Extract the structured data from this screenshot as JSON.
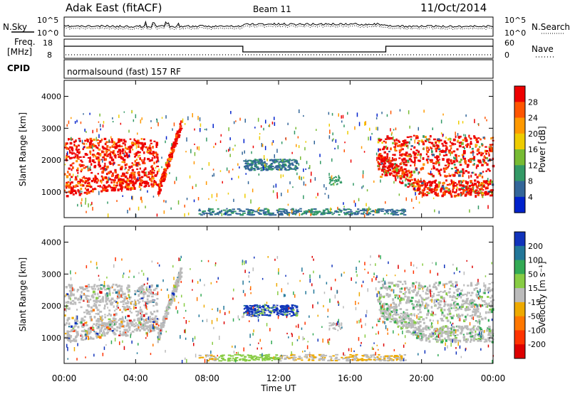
{
  "header": {
    "title": "Adak East (fitACF)",
    "beam": "Beam 11",
    "date": "11/Oct/2014"
  },
  "top_panels": {
    "nsky_label": "N.Sky",
    "nsearch_label": "N.Search",
    "noise_left_ticks": [
      "10^5",
      "10^0"
    ],
    "noise_right_ticks": [
      "10^5",
      "10^0"
    ],
    "freq_label_1": "Freq.",
    "freq_label_2": "[MHz]",
    "freq_ticks": [
      "18",
      "8"
    ],
    "nave_label": "Nave",
    "nave_ticks": [
      "60",
      "0"
    ],
    "cpid_label": "CPID",
    "cpid_value": "normalsound (fast) 157 RF"
  },
  "chart_data": [
    {
      "type": "heatmap",
      "panel": "power",
      "ylabel": "Slant Range [km]",
      "ylim": [
        200,
        4500
      ],
      "y_ticks": [
        1000,
        2000,
        3000,
        4000
      ],
      "colorbar_label": "Power [dB]",
      "colorbar_ticks": [
        "28",
        "24",
        "20",
        "16",
        "12",
        "8",
        "4"
      ],
      "colorbar_colors": [
        "#ee0000",
        "#ff5500",
        "#ff9900",
        "#eecc00",
        "#77bb33",
        "#339966",
        "#336699",
        "#0022cc"
      ]
    },
    {
      "type": "heatmap",
      "panel": "velocity",
      "ylabel": "Slant Range [km]",
      "ylim": [
        200,
        4500
      ],
      "y_ticks": [
        1000,
        2000,
        3000,
        4000
      ],
      "colorbar_label": "Velocity [m s⁻¹]",
      "colorbar_ticks": [
        "200",
        "100",
        "50",
        "15",
        "-15",
        "-50",
        "-100",
        "-200"
      ],
      "colorbar_colors": [
        "#1133bb",
        "#227799",
        "#33aa55",
        "#88cc44",
        "#bbbbbb",
        "#eeaa00",
        "#ff7700",
        "#ff3300",
        "#dd0000"
      ]
    }
  ],
  "xaxis": {
    "label": "Time UT",
    "ticks": [
      "00:00",
      "04:00",
      "08:00",
      "12:00",
      "16:00",
      "20:00",
      "00:00"
    ]
  }
}
